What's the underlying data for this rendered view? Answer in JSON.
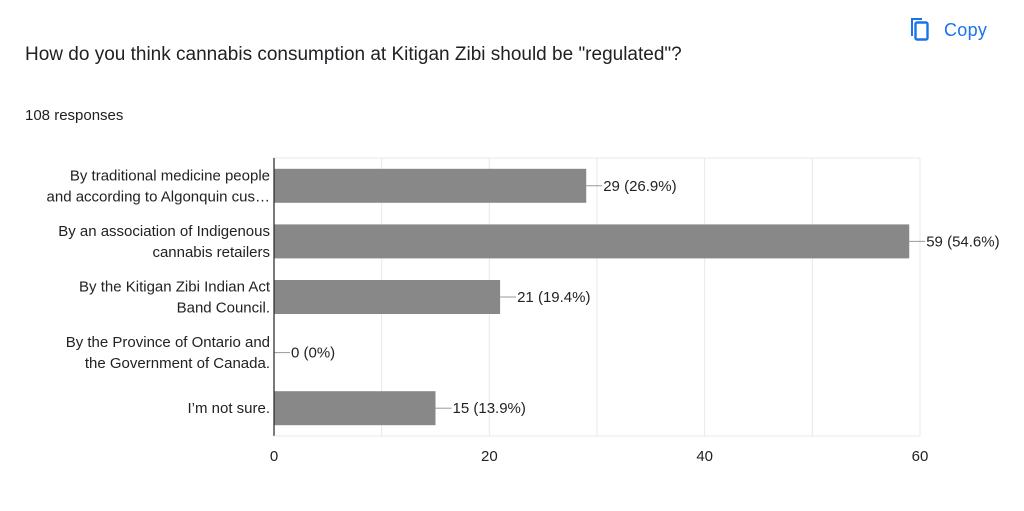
{
  "header": {
    "copy_label": "Copy",
    "title": "How do you think cannabis consumption at Kitigan Zibi should be \"regulated\"?",
    "responses": "108 responses"
  },
  "colors": {
    "bar": "#888888",
    "accent": "#1a73e8",
    "grid": "#e8e8e8"
  },
  "icons": {
    "copy": "copy-icon"
  },
  "chart_data": {
    "type": "bar",
    "orientation": "horizontal",
    "categories": [
      [
        "By traditional medicine people",
        "and according to Algonquin cus…"
      ],
      [
        "By an association of Indigenous",
        "cannabis retailers"
      ],
      [
        "By the Kitigan Zibi Indian Act",
        "Band Council."
      ],
      [
        "By the Province of Ontario and",
        "the Government of Canada."
      ],
      [
        "I’m not sure."
      ]
    ],
    "values": [
      29,
      59,
      21,
      0,
      15
    ],
    "data_labels": [
      "29 (26.9%)",
      "59 (54.6%)",
      "21 (19.4%)",
      "0 (0%)",
      "15 (13.9%)"
    ],
    "xlim": [
      0,
      60
    ],
    "xticks": [
      0,
      20,
      40,
      60
    ],
    "grid": true
  }
}
